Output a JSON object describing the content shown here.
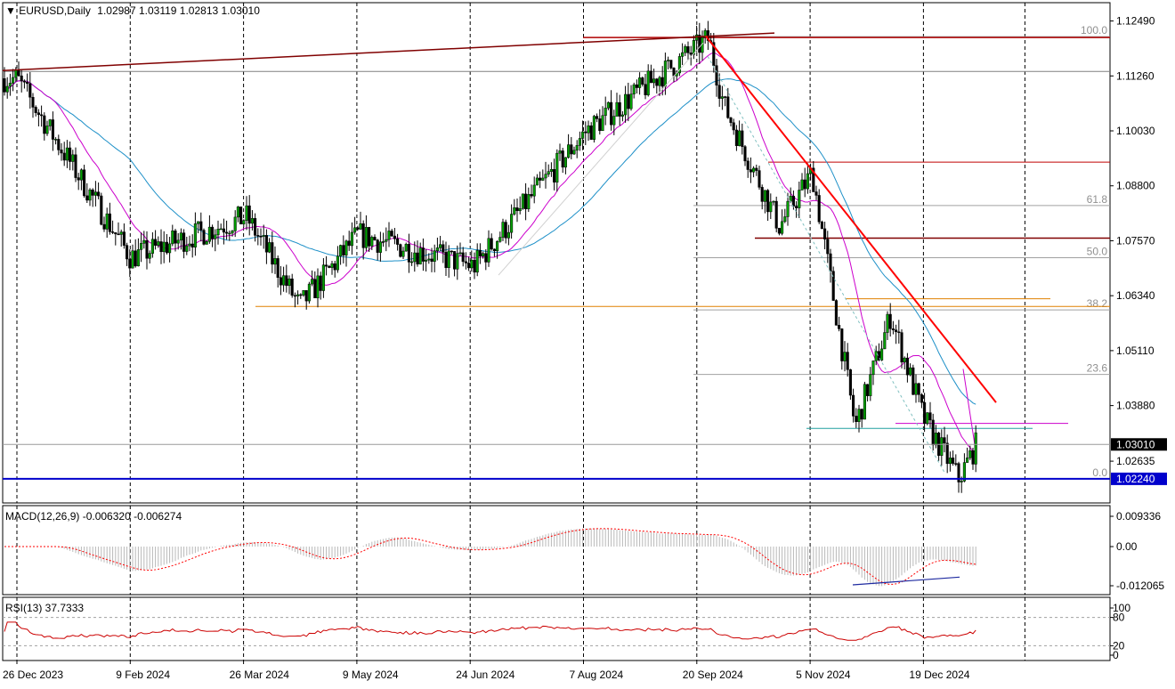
{
  "chart_data": {
    "type": "candlestick",
    "header": {
      "symbol_timeframe": "EURUSD,Daily",
      "ohlc": "1.02987 1.03119 1.02813 1.03010"
    },
    "price_axis": {
      "ylim": [
        1.017,
        1.129
      ],
      "tick_labels": [
        "1.12490",
        "1.11260",
        "1.10030",
        "1.08800",
        "1.07570",
        "1.06340",
        "1.05110",
        "1.03880",
        "1.02635"
      ],
      "current_price": "1.03010",
      "support_price": "1.02240"
    },
    "x_axis": {
      "tick_labels": [
        "26 Dec 2023",
        "9 Feb 2024",
        "26 Mar 2024",
        "9 May 2024",
        "24 Jun 2024",
        "7 Aug 2024",
        "20 Sep 2024",
        "5 Nov 2024",
        "19 Dec 2024"
      ]
    },
    "fibonacci": {
      "levels": [
        "100.0",
        "61.8",
        "50.0",
        "38.2",
        "23.6",
        "0.0"
      ]
    },
    "series": [
      {
        "name": "EURUSD",
        "key_points": [
          {
            "x": "26 Dec 2023",
            "y": 1.112
          },
          {
            "x": "9 Feb 2024",
            "y": 1.072
          },
          {
            "x": "26 Mar 2024",
            "y": 1.081
          },
          {
            "x": "16 Apr 2024",
            "y": 1.061
          },
          {
            "x": "9 May 2024",
            "y": 1.077
          },
          {
            "x": "24 Jun 2024",
            "y": 1.07
          },
          {
            "x": "7 Aug 2024",
            "y": 1.1
          },
          {
            "x": "25 Sep 2024",
            "y": 1.121
          },
          {
            "x": "1 Oct 2024",
            "y": 1.106
          },
          {
            "x": "23 Oct 2024",
            "y": 1.079
          },
          {
            "x": "5 Nov 2024",
            "y": 1.091
          },
          {
            "x": "22 Nov 2024",
            "y": 1.034
          },
          {
            "x": "6 Dec 2024",
            "y": 1.059
          },
          {
            "x": "19 Dec 2024",
            "y": 1.036
          },
          {
            "x": "2 Jan 2025",
            "y": 1.0224
          },
          {
            "x": "9 Jan 2025",
            "y": 1.0301
          }
        ]
      }
    ],
    "macd": {
      "label": "MACD(12,26,9) -0.006320 -0.006274",
      "tick_labels": [
        "0.009336",
        "0.00",
        "-0.012065"
      ]
    },
    "rsi": {
      "label": "RSI(13) 37.7333",
      "tick_labels": [
        "100",
        "80",
        "20",
        "0"
      ]
    },
    "colors": {
      "bull_candle": "#00a000",
      "bear_candle": "#000000",
      "trendline": "#ff0000",
      "ma_fast": "#cc00cc",
      "ma_slow": "#1e90c8",
      "support_line": "#0000cc",
      "macd_signal": "#ff0000",
      "rsi_line": "#cc0000"
    }
  }
}
